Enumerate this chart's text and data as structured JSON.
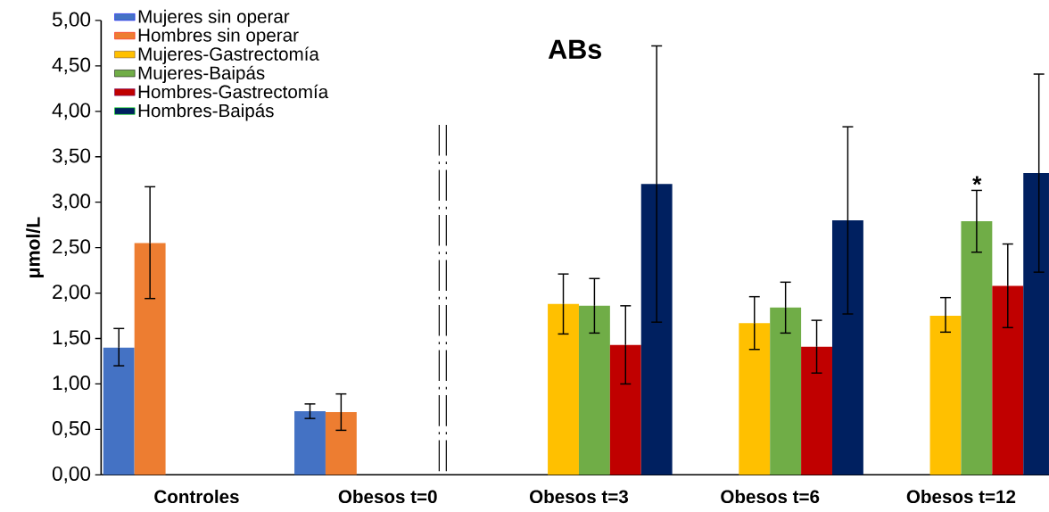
{
  "chart_data": {
    "type": "bar",
    "title": "ABs",
    "ylabel": "μmol/L",
    "categories": [
      "Controles",
      "Obesos t=0",
      "Obesos t=3",
      "Obesos t=6",
      "Obesos t=12"
    ],
    "series": [
      {
        "name": "Mujeres sin operar",
        "color": "#4472c4",
        "values": [
          1.4,
          0.7,
          null,
          null,
          null
        ],
        "errors": [
          [
            1.2,
            1.61
          ],
          [
            0.62,
            0.78
          ],
          null,
          null,
          null
        ]
      },
      {
        "name": "Hombres sin operar",
        "color": "#ed7d31",
        "values": [
          2.55,
          0.69,
          null,
          null,
          null
        ],
        "errors": [
          [
            1.94,
            3.17
          ],
          [
            0.49,
            0.89
          ],
          null,
          null,
          null
        ]
      },
      {
        "name": "Mujeres-Gastrectomía",
        "color": "#ffc000",
        "values": [
          null,
          null,
          1.88,
          1.67,
          1.75
        ],
        "errors": [
          null,
          null,
          [
            1.55,
            2.21
          ],
          [
            1.38,
            1.96
          ],
          [
            1.57,
            1.95
          ]
        ]
      },
      {
        "name": "Mujeres-Baipás",
        "color": "#70ad47",
        "values": [
          null,
          null,
          1.86,
          1.84,
          2.79
        ],
        "errors": [
          null,
          null,
          [
            1.56,
            2.16
          ],
          [
            1.56,
            2.12
          ],
          [
            2.45,
            3.13
          ]
        ]
      },
      {
        "name": "Hombres-Gastrectomía",
        "color": "#c00000",
        "values": [
          null,
          null,
          1.43,
          1.41,
          2.08
        ],
        "errors": [
          null,
          null,
          [
            1.0,
            1.86
          ],
          [
            1.12,
            1.7
          ],
          [
            1.62,
            2.54
          ]
        ]
      },
      {
        "name": "Hombres-Baipás",
        "color": "#002060",
        "values": [
          null,
          null,
          3.2,
          2.8,
          3.32
        ],
        "errors": [
          null,
          null,
          [
            1.68,
            4.72
          ],
          [
            1.77,
            3.83
          ],
          [
            2.23,
            4.41
          ]
        ]
      }
    ],
    "ylim": [
      0,
      5
    ],
    "yticks": [
      {
        "value": 0,
        "label": "0,00"
      },
      {
        "value": 0.5,
        "label": "0,50"
      },
      {
        "value": 1,
        "label": "1,00"
      },
      {
        "value": 1.5,
        "label": "1,50"
      },
      {
        "value": 2,
        "label": "2,00"
      },
      {
        "value": 2.5,
        "label": "2,50"
      },
      {
        "value": 3,
        "label": "3,00"
      },
      {
        "value": 3.5,
        "label": "3,50"
      },
      {
        "value": 4,
        "label": "4,00"
      },
      {
        "value": 4.5,
        "label": "4,50"
      },
      {
        "value": 5,
        "label": "5,00"
      }
    ],
    "annotations": [
      "*"
    ],
    "grid": false,
    "legend": "top left"
  }
}
